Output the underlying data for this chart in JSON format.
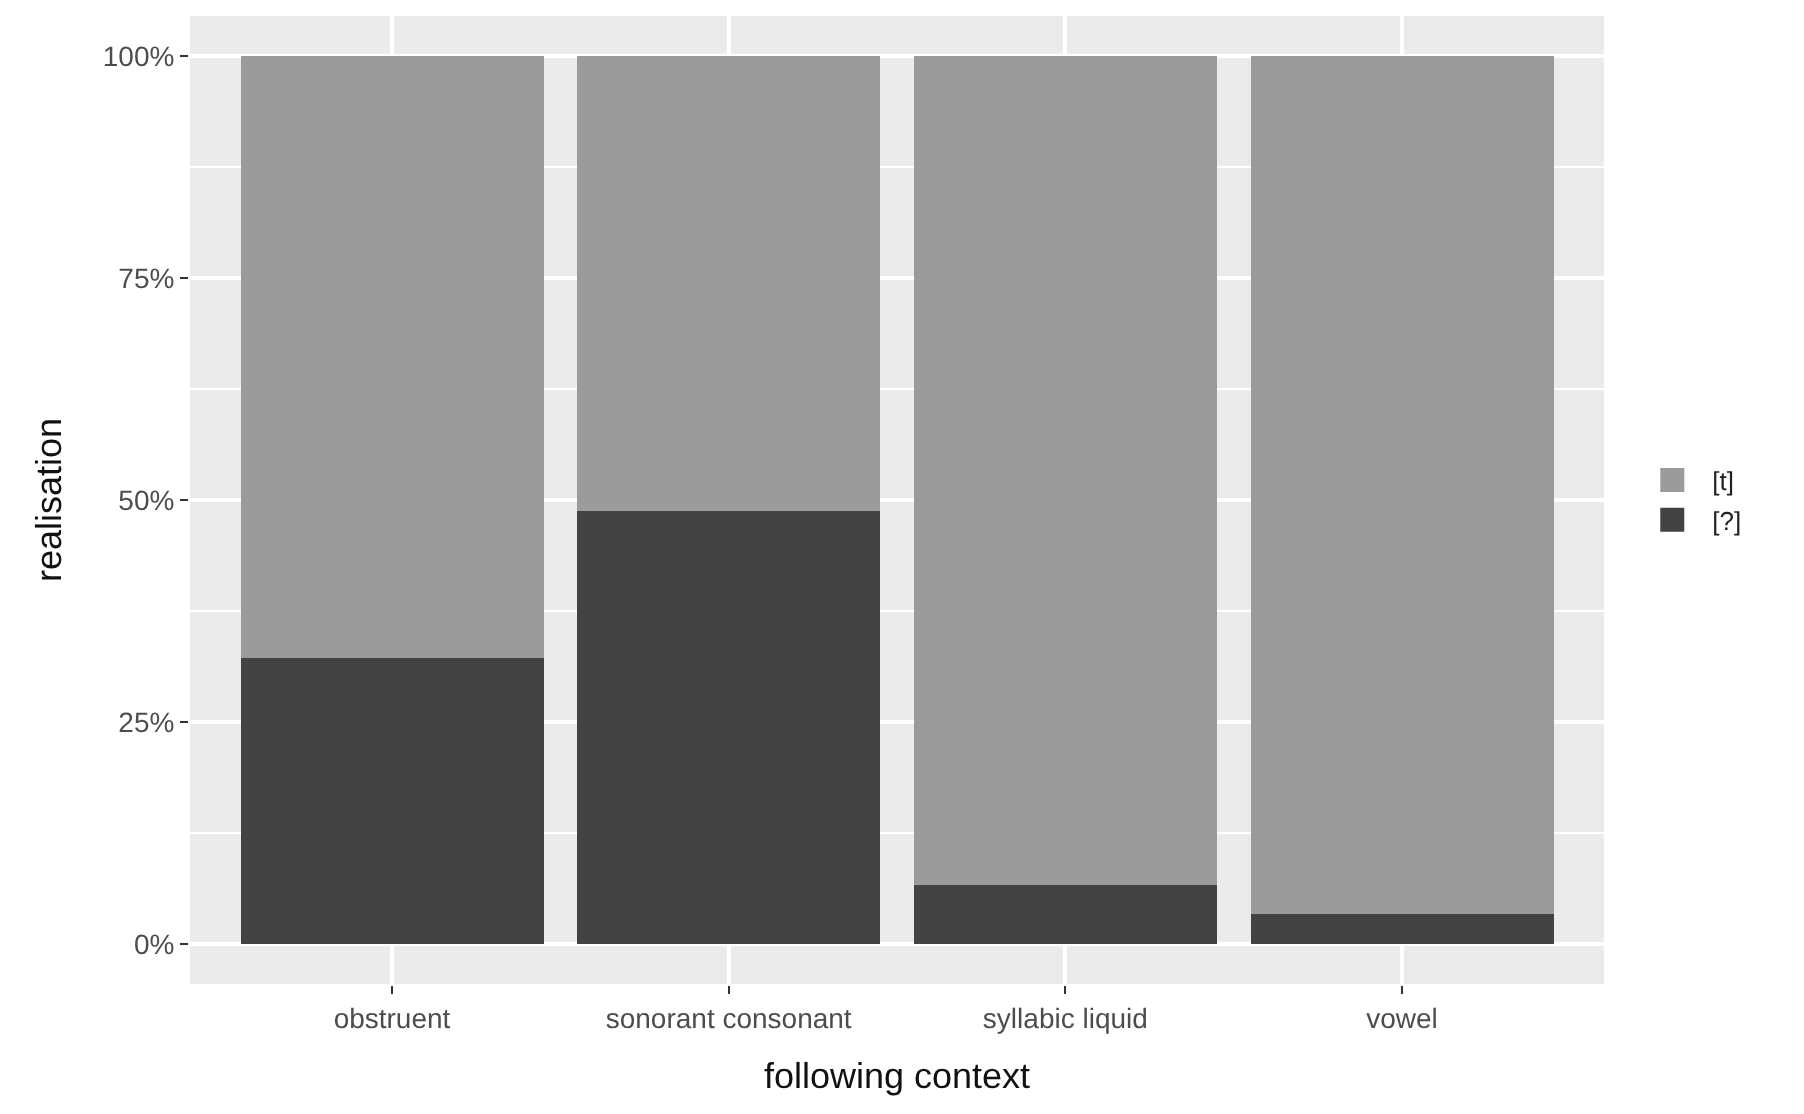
{
  "chart_data": {
    "type": "bar",
    "stacked": true,
    "xlabel": "following context",
    "ylabel": "realisation",
    "categories": [
      "obstruent",
      "sonorant consonant",
      "syllabic liquid",
      "vowel"
    ],
    "series": [
      {
        "name": "[?]",
        "color": "#434343",
        "values": [
          32.2,
          48.8,
          6.6,
          3.4
        ]
      },
      {
        "name": "[t]",
        "color": "#9b9b9b",
        "values": [
          67.8,
          51.2,
          93.4,
          96.6
        ]
      }
    ],
    "ylim": [
      -4.5,
      104.5
    ],
    "yticks": [
      {
        "value": 0,
        "label": "0%"
      },
      {
        "value": 25,
        "label": "25%"
      },
      {
        "value": 50,
        "label": "50%"
      },
      {
        "value": 75,
        "label": "75%"
      },
      {
        "value": 100,
        "label": "100%"
      }
    ],
    "grid": true,
    "legend": "right"
  }
}
